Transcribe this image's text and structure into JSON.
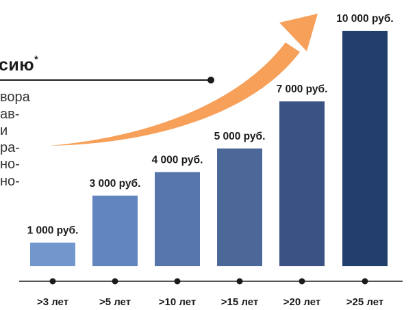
{
  "side_text": {
    "heading": "сию",
    "heading_mark": "*",
    "lines": [
      "вора",
      "ав-",
      "и",
      "ра-",
      "но-",
      "но-"
    ]
  },
  "colors": {
    "arrow": "#f7a05a",
    "axis": "#1b1b1b",
    "bars": [
      "#7197cd",
      "#6284bf",
      "#5575ab",
      "#4b6898",
      "#3a5384",
      "#223e6a"
    ]
  },
  "chart_data": {
    "type": "bar",
    "categories": [
      ">3 лет",
      ">5 лет",
      ">10 лет",
      ">15 лет",
      ">20 лет",
      ">25 лет"
    ],
    "values": [
      1000,
      3000,
      4000,
      5000,
      7000,
      10000
    ],
    "data_labels": [
      "1 000 руб.",
      "3 000 руб.",
      "4 000 руб.",
      "5 000 руб.",
      "7 000 руб.",
      "10 000 руб."
    ],
    "title": "",
    "xlabel": "",
    "ylabel": "",
    "ylim": [
      0,
      10000
    ],
    "grid": false,
    "trend_arrow": true
  }
}
